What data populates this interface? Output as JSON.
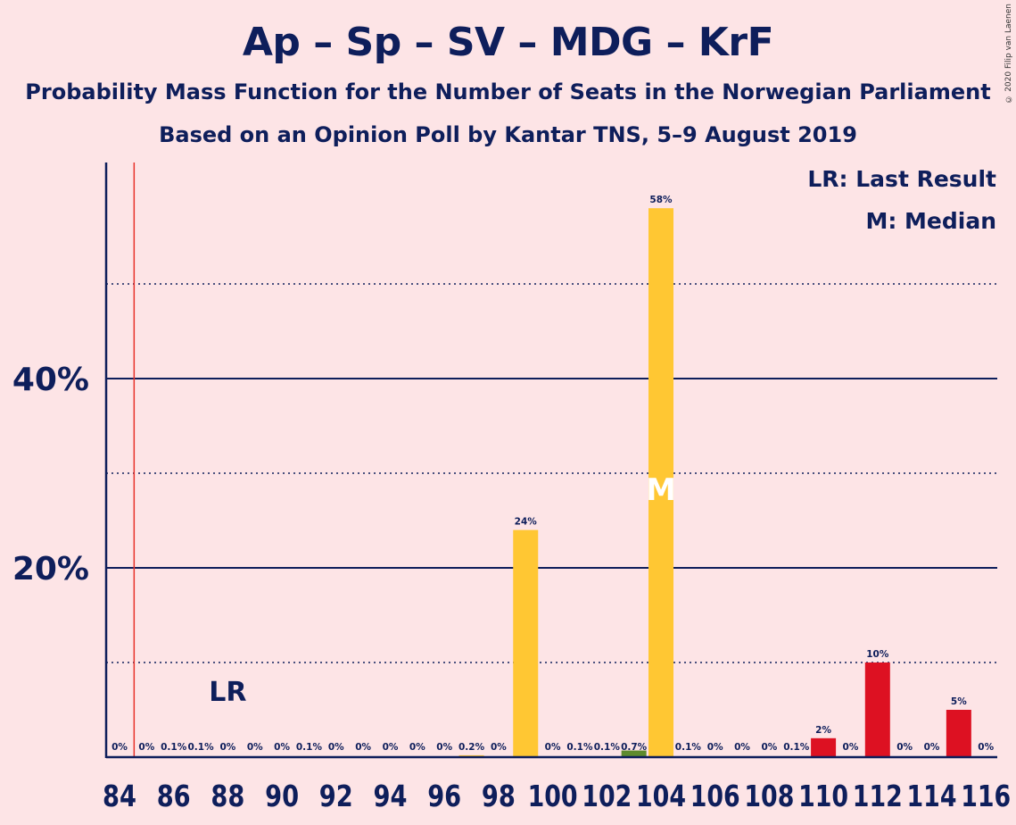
{
  "title": "Ap – Sp – SV – MDG – KrF",
  "subtitle1": "Probability Mass Function for the Number of Seats in the Norwegian Parliament",
  "subtitle2": "Based on an Opinion Poll by Kantar TNS, 5–9 August 2019",
  "copyright": "© 2020 Filip van Laenen",
  "chart_data": {
    "type": "bar",
    "x": [
      84,
      85,
      86,
      87,
      88,
      89,
      90,
      91,
      92,
      93,
      94,
      95,
      96,
      97,
      98,
      99,
      100,
      101,
      102,
      103,
      104,
      105,
      106,
      107,
      108,
      109,
      110,
      111,
      112,
      113,
      114,
      115,
      116
    ],
    "values": [
      0,
      0,
      0.1,
      0.1,
      0,
      0,
      0,
      0.1,
      0,
      0,
      0,
      0,
      0,
      0.2,
      0,
      24,
      0,
      0.1,
      0.1,
      0.7,
      58,
      0.1,
      0,
      0,
      0,
      0.1,
      2,
      0,
      10,
      0,
      0,
      5,
      0
    ],
    "value_labels": [
      "0%",
      "0%",
      "0.1%",
      "0.1%",
      "0%",
      "0%",
      "0%",
      "0.1%",
      "0%",
      "0%",
      "0%",
      "0%",
      "0%",
      "0.2%",
      "0%",
      "24%",
      "0%",
      "0.1%",
      "0.1%",
      "0.7%",
      "58%",
      "0.1%",
      "0%",
      "0%",
      "0%",
      "0.1%",
      "2%",
      "0%",
      "10%",
      "0%",
      "0%",
      "5%",
      "0%"
    ],
    "bar_colors": {
      "104": "#ffc733",
      "99": "#ffc733",
      "103": "#5e8b2e",
      "110": "#dd1122",
      "112": "#dd1122",
      "115": "#dd1122"
    },
    "default_color": "#ffc733",
    "x_tick_labels": [
      "84",
      "86",
      "88",
      "90",
      "92",
      "94",
      "96",
      "98",
      "100",
      "102",
      "104",
      "106",
      "108",
      "110",
      "112",
      "114",
      "116"
    ],
    "y_tick_labels": [
      "20%",
      "40%"
    ],
    "y_ticks": [
      20,
      40
    ],
    "y_minor_gridlines": [
      10,
      30,
      50
    ],
    "ylim": [
      0,
      62.6
    ],
    "last_result": {
      "seat": 85,
      "label": "LR"
    },
    "median": {
      "seat": 104,
      "label": "M"
    },
    "legend": [
      "LR: Last Result",
      "M: Median"
    ],
    "legend_position": "top-right",
    "colors": {
      "axis": "#0e1e5b",
      "last_result_line": "#e8312a",
      "median_text": "#ffffff"
    }
  }
}
